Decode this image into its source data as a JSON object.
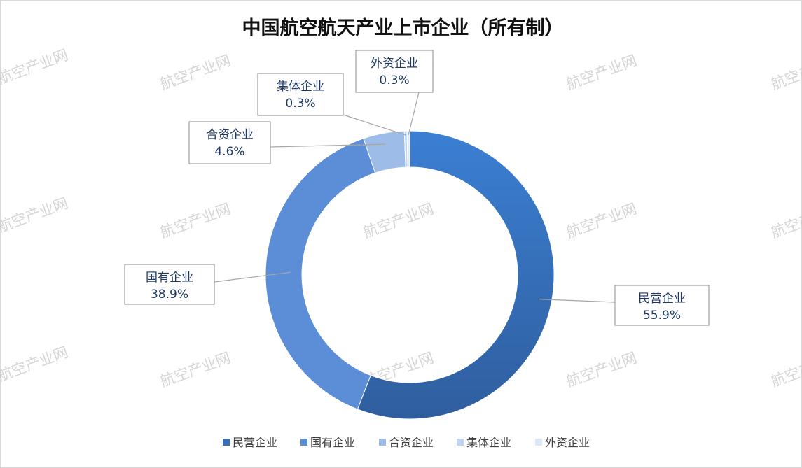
{
  "colors": {
    "slices": [
      "#3a6fb8",
      "#5b8ed6",
      "#9dbde8",
      "#bfd4f0",
      "#dce8f7"
    ]
  },
  "watermark": "航空产业网",
  "chart_data": {
    "type": "pie",
    "variant": "donut",
    "title": "中国航空航天产业上市企业（所有制）",
    "categories": [
      "民营企业",
      "国有企业",
      "合资企业",
      "集体企业",
      "外资企业"
    ],
    "values": [
      55.9,
      38.9,
      4.6,
      0.3,
      0.3
    ],
    "data_labels": [
      "55.9%",
      "38.9%",
      "4.6%",
      "0.3%",
      "0.3%"
    ],
    "legend_position": "bottom"
  }
}
